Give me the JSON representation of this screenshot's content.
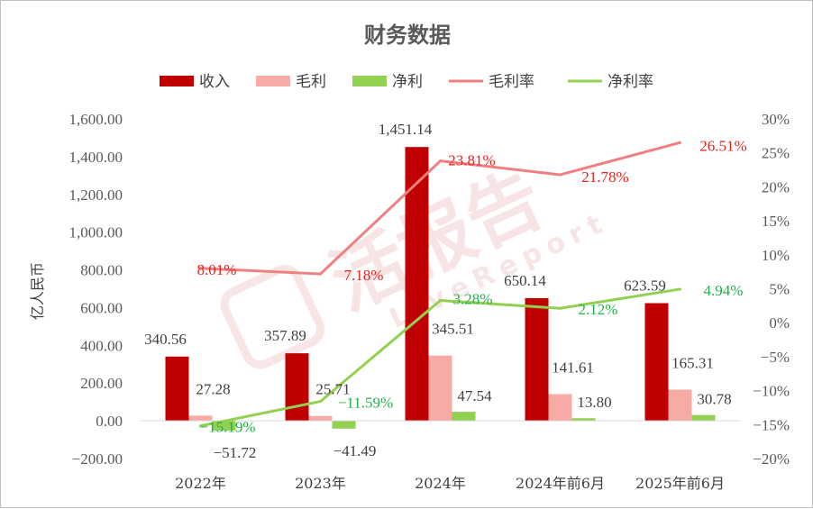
{
  "chart_data": {
    "type": "bar",
    "title": "财务数据",
    "ylabel": "亿人民币",
    "categories": [
      "2022年",
      "2023年",
      "2024年",
      "2024年前6月",
      "2025年前6月"
    ],
    "ylim": [
      -200,
      1600
    ],
    "y_ticks": [
      "−200.00",
      "0.00",
      "200.00",
      "400.00",
      "600.00",
      "800.00",
      "1,000.00",
      "1,200.00",
      "1,400.00",
      "1,600.00"
    ],
    "y2lim": [
      -20,
      30
    ],
    "y2_ticks": [
      "−20%",
      "−15%",
      "−10%",
      "−5%",
      "0%",
      "5%",
      "10%",
      "15%",
      "20%",
      "25%",
      "30%"
    ],
    "grid": false,
    "legend_position": "top",
    "bar_series": [
      {
        "name": "收入",
        "values": [
          340.56,
          357.89,
          1451.14,
          650.14,
          623.59
        ],
        "labels": [
          "340.56",
          "357.89",
          "1,451.14",
          "650.14",
          "623.59"
        ],
        "color": "#c00000"
      },
      {
        "name": "毛利",
        "values": [
          27.28,
          25.71,
          345.51,
          141.61,
          165.31
        ],
        "labels": [
          "27.28",
          "25.71",
          "345.51",
          "141.61",
          "165.31"
        ],
        "color": "#f8aba6"
      },
      {
        "name": "净利",
        "values": [
          -51.72,
          -41.49,
          47.54,
          13.8,
          30.78
        ],
        "labels": [
          "−51.72",
          "−41.49",
          "47.54",
          "13.80",
          "30.78"
        ],
        "color": "#92d050"
      }
    ],
    "line_series": [
      {
        "name": "毛利率",
        "values": [
          8.01,
          7.18,
          23.81,
          21.78,
          26.51
        ],
        "labels": [
          "8.01%",
          "7.18%",
          "23.81%",
          "21.78%",
          "26.51%"
        ],
        "color": "#f08080",
        "label_color": "#e8231e",
        "axis": "right"
      },
      {
        "name": "净利率",
        "values": [
          -15.19,
          -11.59,
          3.28,
          2.12,
          4.94
        ],
        "labels": [
          "−15.19%",
          "−11.59%",
          "3.28%",
          "2.12%",
          "4.94%"
        ],
        "color": "#92d050",
        "label_color": "#21b24b",
        "axis": "right"
      }
    ]
  },
  "watermark": {
    "main": "活报告",
    "sub": "LiveReport"
  }
}
